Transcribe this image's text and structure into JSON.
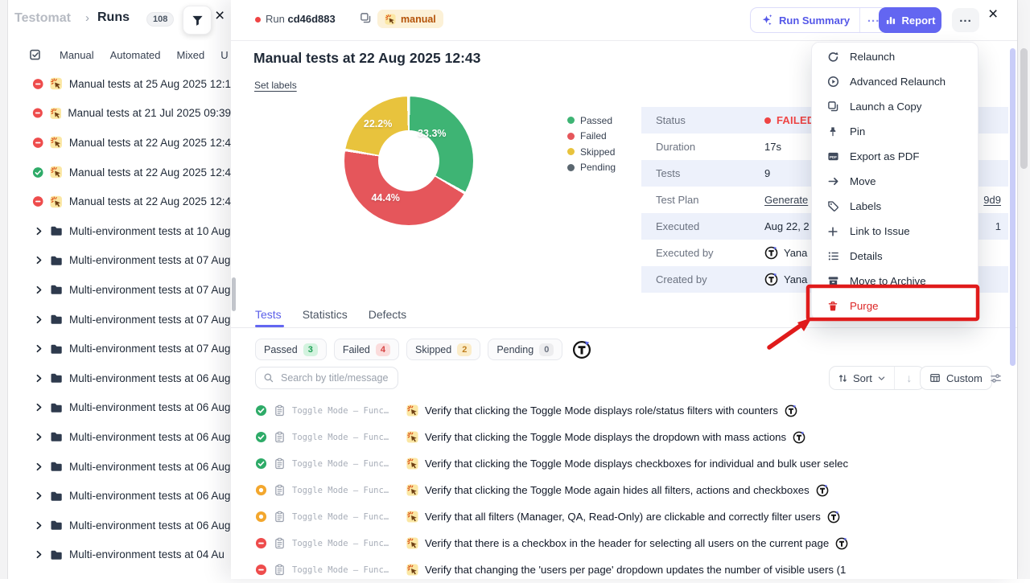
{
  "sidebar": {
    "logo": "Testomat",
    "sep": "›",
    "title": "Runs",
    "count": "108",
    "tabs": [
      "Manual",
      "Automated",
      "Mixed",
      "U"
    ],
    "items": [
      {
        "type": "run",
        "status": "failed",
        "label": "Manual tests at 25 Aug 2025 12:1"
      },
      {
        "type": "run",
        "status": "failed",
        "label": "Manual tests at 21 Jul 2025 09:39"
      },
      {
        "type": "run",
        "status": "failed",
        "label": "Manual tests at 22 Aug 2025 12:4"
      },
      {
        "type": "run",
        "status": "passed",
        "label": "Manual tests at 22 Aug 2025 12:4"
      },
      {
        "type": "run",
        "status": "failed",
        "label": "Manual tests at 22 Aug 2025 12:4"
      },
      {
        "type": "folder",
        "label": "Multi-environment tests at 10 Aug"
      },
      {
        "type": "folder",
        "label": "Multi-environment tests at 07 Aug"
      },
      {
        "type": "folder",
        "label": "Multi-environment tests at 07 Aug"
      },
      {
        "type": "folder",
        "label": "Multi-environment tests at 07 Aug"
      },
      {
        "type": "folder",
        "label": "Multi-environment tests at 07 Aug"
      },
      {
        "type": "folder",
        "label": "Multi-environment tests at 06 Aug"
      },
      {
        "type": "folder",
        "label": "Multi-environment tests at 06 Aug"
      },
      {
        "type": "folder",
        "label": "Multi-environment tests at 06 Aug"
      },
      {
        "type": "folder",
        "label": "Multi-environment tests at 06 Aug"
      },
      {
        "type": "folder",
        "label": "Multi-environment tests at 06 Aug"
      },
      {
        "type": "folder",
        "label": "Multi-environment tests at 06 Aug"
      },
      {
        "type": "folder",
        "label": "Multi-environment tests at 04 Au"
      }
    ]
  },
  "run_header": {
    "run_label": "Run",
    "run_id": "cd46d883",
    "badge_label": "manual",
    "run_summary_label": "Run Summary",
    "report_label": "Report"
  },
  "run": {
    "title": "Manual tests at 22 Aug 2025 12:43",
    "set_labels": "Set labels"
  },
  "chart_data": {
    "type": "pie",
    "donut": true,
    "labels": [
      "Passed",
      "Failed",
      "Skipped",
      "Pending"
    ],
    "values": [
      33.3,
      44.4,
      22.2,
      0
    ],
    "colors": [
      "#3eb474",
      "#e5565b",
      "#e8c33d",
      "#5b6770"
    ],
    "slice_labels": [
      "33.3%",
      "44.4%",
      "22.2%"
    ],
    "legend_position": "right",
    "title": ""
  },
  "details": {
    "rows": [
      {
        "label": "Status",
        "type": "status",
        "value": "FAILED",
        "color": "#ef4444"
      },
      {
        "label": "Duration",
        "type": "text",
        "value": "17s"
      },
      {
        "label": "Tests",
        "type": "text",
        "value": "9"
      },
      {
        "label": "Test Plan",
        "type": "link",
        "value": "Generate",
        "tail": "9d9"
      },
      {
        "label": "Executed",
        "type": "text",
        "value": "Aug 22, 2",
        "tail": "1"
      },
      {
        "label": "Executed by",
        "type": "user",
        "value": "Yana"
      },
      {
        "label": "Created by",
        "type": "user",
        "value": "Yana"
      }
    ]
  },
  "tabs": {
    "items": [
      {
        "label": "Tests",
        "active": true
      },
      {
        "label": "Statistics",
        "active": false
      },
      {
        "label": "Defects",
        "active": false
      }
    ]
  },
  "filters": {
    "chips": [
      {
        "label": "Passed",
        "count": "3",
        "tone": "green"
      },
      {
        "label": "Failed",
        "count": "4",
        "tone": "red"
      },
      {
        "label": "Skipped",
        "count": "2",
        "tone": "amber"
      },
      {
        "label": "Pending",
        "count": "0",
        "tone": "grey"
      }
    ]
  },
  "search": {
    "placeholder": "Search by title/message"
  },
  "toolbar": {
    "sort_label": "Sort",
    "custom_label": "Custom"
  },
  "tests": {
    "rows": [
      {
        "status": "passed",
        "suite": "Toggle Mode — Func…",
        "title": "Verify that clicking the Toggle Mode displays role/status filters with counters",
        "assignee": true
      },
      {
        "status": "passed",
        "suite": "Toggle Mode — Func…",
        "title": "Verify that clicking the Toggle Mode displays the dropdown with mass actions",
        "assignee": true
      },
      {
        "status": "passed",
        "suite": "Toggle Mode — Func…",
        "title": "Verify that clicking the Toggle Mode displays checkboxes for individual and bulk user selec",
        "assignee": false
      },
      {
        "status": "skipped",
        "suite": "Toggle Mode — Func…",
        "title": "Verify that clicking the Toggle Mode again hides all filters, actions and checkboxes",
        "assignee": true
      },
      {
        "status": "skipped",
        "suite": "Toggle Mode — Func…",
        "title": "Verify that all filters (Manager, QA, Read-Only) are clickable and correctly filter users",
        "assignee": true
      },
      {
        "status": "failed",
        "suite": "Toggle Mode — Func…",
        "title": "Verify that there is a checkbox in the header for selecting all users on the current page",
        "assignee": true
      },
      {
        "status": "failed",
        "suite": "Toggle Mode — Func…",
        "title": "Verify that changing the 'users per page' dropdown updates the number of visible users (1",
        "assignee": false
      }
    ]
  },
  "menu": {
    "items": [
      {
        "label": "Relaunch",
        "icon": "relaunch"
      },
      {
        "label": "Advanced Relaunch",
        "icon": "playcircle"
      },
      {
        "label": "Launch a Copy",
        "icon": "copy"
      },
      {
        "label": "Pin",
        "icon": "pin"
      },
      {
        "label": "Export as PDF",
        "icon": "pdf"
      },
      {
        "label": "Move",
        "icon": "arrowright"
      },
      {
        "label": "Labels",
        "icon": "tag"
      },
      {
        "label": "Link to Issue",
        "icon": "plus"
      },
      {
        "label": "Details",
        "icon": "list"
      },
      {
        "label": "Move to Archive",
        "icon": "archive"
      },
      {
        "label": "Purge",
        "icon": "trash",
        "danger": true
      }
    ]
  },
  "annotation": {
    "highlighted_item": "Purge",
    "color": "#e01b1b"
  }
}
